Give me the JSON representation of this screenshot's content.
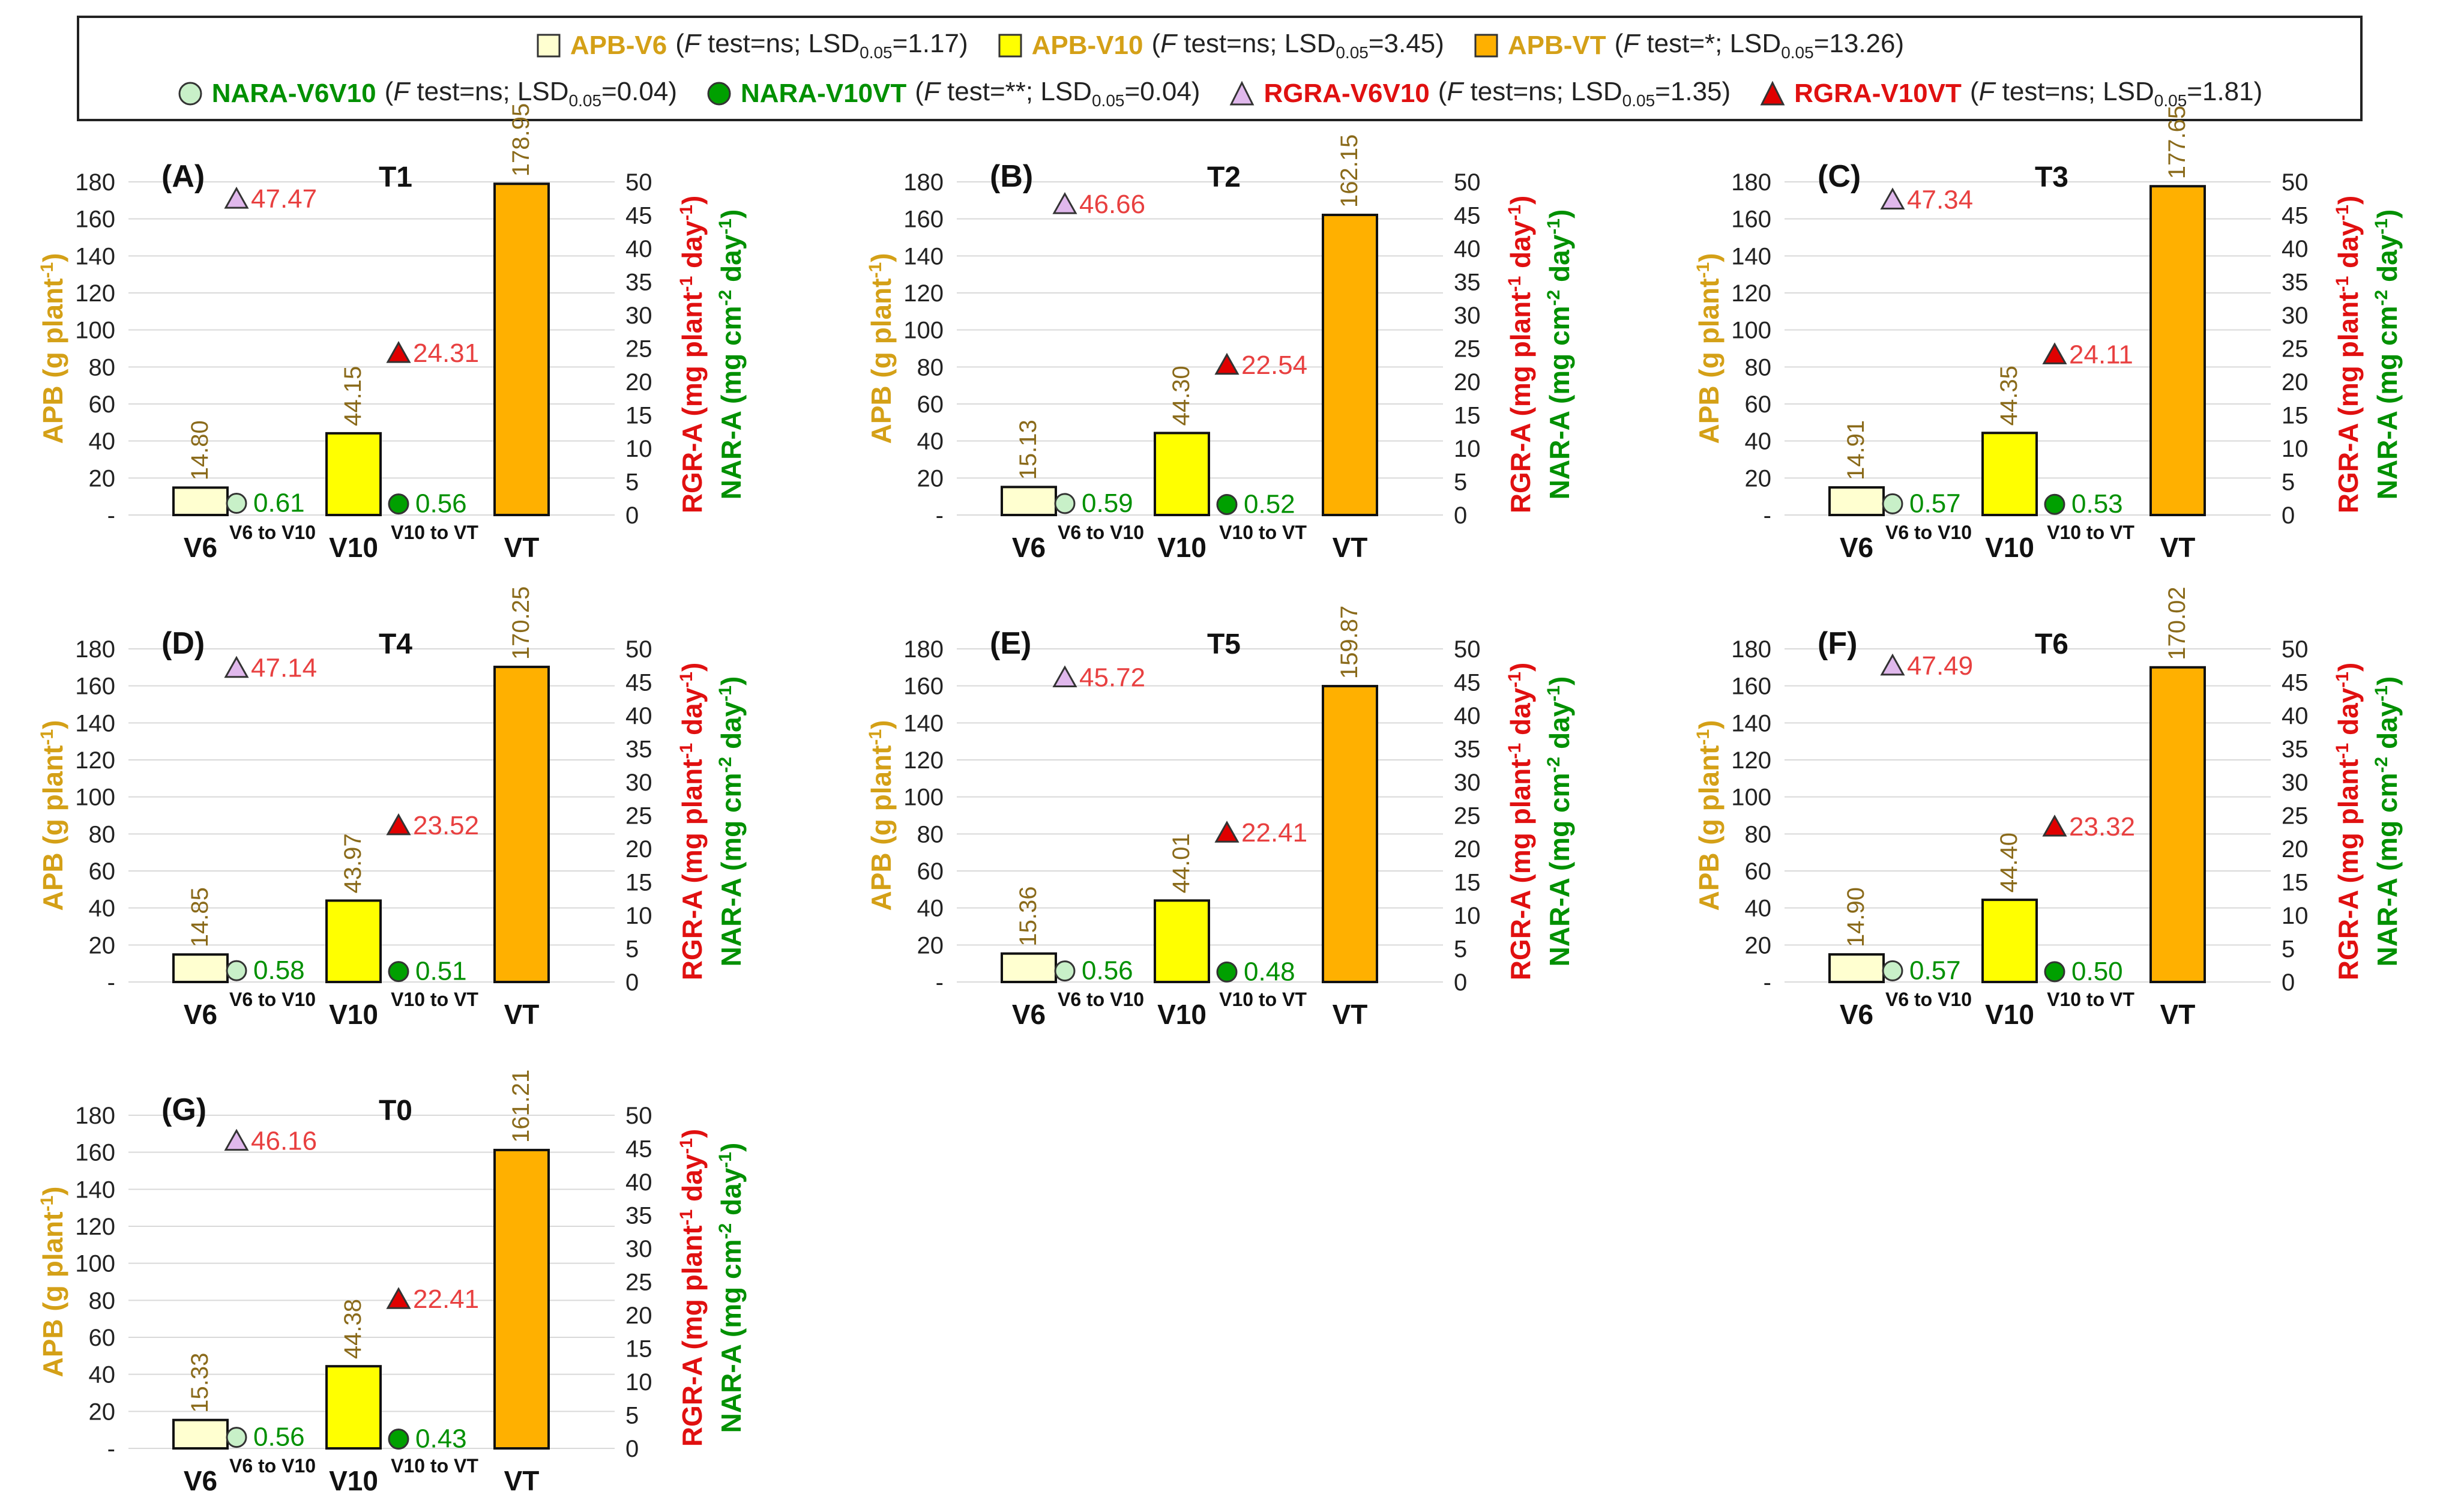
{
  "colors": {
    "apb_v6": "#ffffd0",
    "apb_v10": "#ffff00",
    "apb_vt": "#ffb000",
    "nara_v6v10": "#c8f0c8",
    "nara_v10vt": "#00a000",
    "rgra_v6v10": "#e0b8ec",
    "rgra_v10vt": "#e00000",
    "apb_text": "#d4a017",
    "apb_value_text": "#8a6a1a",
    "nar_text": "#009000",
    "rgr_text": "#e01010",
    "rgr_value_text": "#e84040"
  },
  "legend": {
    "items": [
      {
        "key": "apb_v6",
        "symbol": "square",
        "name": "APB-V6",
        "f": "ns",
        "lsd": "1.17",
        "name_color": "#d4a017"
      },
      {
        "key": "apb_v10",
        "symbol": "square",
        "name": "APB-V10",
        "f": "ns",
        "lsd": "3.45",
        "name_color": "#d4a017"
      },
      {
        "key": "apb_vt",
        "symbol": "square",
        "name": "APB-VT",
        "f": "*",
        "lsd": "13.26",
        "name_color": "#d4a017"
      },
      {
        "key": "nara_v6v10",
        "symbol": "circle",
        "name": "NARA-V6V10",
        "f": "ns",
        "lsd": "0.04",
        "name_color": "#009000"
      },
      {
        "key": "nara_v10vt",
        "symbol": "circle",
        "name": "NARA-V10VT",
        "f": "**",
        "lsd": "0.04",
        "name_color": "#009000"
      },
      {
        "key": "rgra_v6v10",
        "symbol": "triangle",
        "name": "RGRA-V6V10",
        "f": "ns",
        "lsd": "1.35",
        "name_color": "#e01010"
      },
      {
        "key": "rgra_v10vt",
        "symbol": "triangle",
        "name": "RGRA-V10VT",
        "f": "ns",
        "lsd": "1.81",
        "name_color": "#e01010"
      }
    ],
    "f_label": "F",
    "f_rest": " test=",
    "lsd_label": "LSD",
    "lsd_sub": "0.05"
  },
  "chart_data": [
    {
      "type": "bar",
      "panel": "(A)",
      "title": "T1",
      "categories": [
        "V6",
        "V6 to V10",
        "V10",
        "V10 to VT",
        "VT"
      ],
      "apb": {
        "V6": 14.8,
        "V10": 44.15,
        "VT": 178.95
      },
      "nar": {
        "V6 to V10": 0.61,
        "V10 to VT": 0.56
      },
      "rgr": {
        "V6 to V10": 47.47,
        "V10 to VT": 24.31
      }
    },
    {
      "type": "bar",
      "panel": "(B)",
      "title": "T2",
      "categories": [
        "V6",
        "V6 to V10",
        "V10",
        "V10 to VT",
        "VT"
      ],
      "apb": {
        "V6": 15.13,
        "V10": 44.3,
        "VT": 162.15
      },
      "nar": {
        "V6 to V10": 0.59,
        "V10 to VT": 0.52
      },
      "rgr": {
        "V6 to V10": 46.66,
        "V10 to VT": 22.54
      }
    },
    {
      "type": "bar",
      "panel": "(C)",
      "title": "T3",
      "categories": [
        "V6",
        "V6 to V10",
        "V10",
        "V10 to VT",
        "VT"
      ],
      "apb": {
        "V6": 14.91,
        "V10": 44.35,
        "VT": 177.65
      },
      "nar": {
        "V6 to V10": 0.57,
        "V10 to VT": 0.53
      },
      "rgr": {
        "V6 to V10": 47.34,
        "V10 to VT": 24.11
      }
    },
    {
      "type": "bar",
      "panel": "(D)",
      "title": "T4",
      "categories": [
        "V6",
        "V6 to V10",
        "V10",
        "V10 to VT",
        "VT"
      ],
      "apb": {
        "V6": 14.85,
        "V10": 43.97,
        "VT": 170.25
      },
      "nar": {
        "V6 to V10": 0.58,
        "V10 to VT": 0.51
      },
      "rgr": {
        "V6 to V10": 47.14,
        "V10 to VT": 23.52
      }
    },
    {
      "type": "bar",
      "panel": "(E)",
      "title": "T5",
      "categories": [
        "V6",
        "V6 to V10",
        "V10",
        "V10 to VT",
        "VT"
      ],
      "apb": {
        "V6": 15.36,
        "V10": 44.01,
        "VT": 159.87
      },
      "nar": {
        "V6 to V10": 0.56,
        "V10 to VT": 0.48
      },
      "rgr": {
        "V6 to V10": 45.72,
        "V10 to VT": 22.41
      }
    },
    {
      "type": "bar",
      "panel": "(F)",
      "title": "T6",
      "categories": [
        "V6",
        "V6 to V10",
        "V10",
        "V10 to VT",
        "VT"
      ],
      "apb": {
        "V6": 14.9,
        "V10": 44.4,
        "VT": 170.02
      },
      "nar": {
        "V6 to V10": 0.57,
        "V10 to VT": 0.5
      },
      "rgr": {
        "V6 to V10": 47.49,
        "V10 to VT": 23.32
      }
    },
    {
      "type": "bar",
      "panel": "(G)",
      "title": "T0",
      "categories": [
        "V6",
        "V6 to V10",
        "V10",
        "V10 to VT",
        "VT"
      ],
      "apb": {
        "V6": 15.33,
        "V10": 44.38,
        "VT": 161.21
      },
      "nar": {
        "V6 to V10": 0.56,
        "V10 to VT": 0.43
      },
      "rgr": {
        "V6 to V10": 46.16,
        "V10 to VT": 22.41
      }
    }
  ],
  "axes": {
    "left_label_main": "APB (g plant",
    "left_label_sup": "-1",
    "left_label_end": ")",
    "rgr_label_main": "RGR-A (mg plant",
    "rgr_label_sup1": "-1",
    "rgr_label_mid": " day",
    "rgr_label_sup2": "-1",
    "rgr_label_end": ")",
    "nar_label_main": "NAR-A (mg cm",
    "nar_label_sup1": "-2",
    "nar_label_mid": " day",
    "nar_label_sup2": "-1",
    "nar_label_end": ")",
    "left_ticks": [
      "-",
      "20",
      "40",
      "60",
      "80",
      "100",
      "120",
      "140",
      "160",
      "180"
    ],
    "left_range": [
      0,
      180
    ],
    "right_ticks": [
      "0",
      "5",
      "10",
      "15",
      "20",
      "25",
      "30",
      "35",
      "40",
      "45",
      "50"
    ],
    "right_range": [
      0,
      50
    ],
    "nar_range": [
      0,
      50
    ],
    "grid": true
  }
}
